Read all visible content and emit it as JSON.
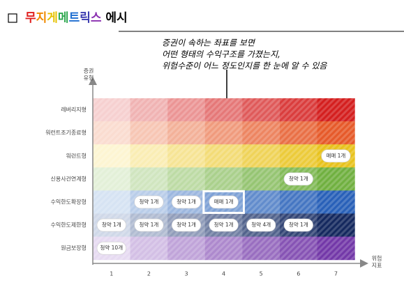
{
  "title": "무지게메트릭스 에시",
  "annotation": [
    "증권이 속하는 좌표를 보면",
    "어떤 형태의 수익구조를 가졌는지,",
    "위험수준이 어느 정도인지를 한 눈에 알 수 있음"
  ],
  "y_axis_label": [
    "증권",
    "유형"
  ],
  "x_axis_label": [
    "위험",
    "지표"
  ],
  "columns": [
    "1",
    "2",
    "3",
    "4",
    "5",
    "6",
    "7"
  ],
  "rows": [
    {
      "label": "레버리지형",
      "cells": [
        null,
        null,
        null,
        null,
        null,
        null,
        null
      ]
    },
    {
      "label": "워런트조기종료형",
      "cells": [
        null,
        null,
        null,
        null,
        null,
        null,
        null
      ]
    },
    {
      "label": "워런트형",
      "cells": [
        null,
        null,
        null,
        null,
        null,
        null,
        "매매 1개"
      ]
    },
    {
      "label": "신용사건연계형",
      "cells": [
        null,
        null,
        null,
        null,
        null,
        "청약 1개",
        null
      ]
    },
    {
      "label": "수익한도확장형",
      "cells": [
        null,
        "청약 1개",
        "청약 1개",
        "매매 1개",
        null,
        null,
        null
      ]
    },
    {
      "label": "수익한도제한형",
      "cells": [
        "청약 1개",
        "청약 1개",
        "청약 1개",
        "청약 1개",
        "청약 4개",
        "청약 1개",
        null
      ]
    },
    {
      "label": "원금보장형",
      "cells": [
        "청약 10개",
        null,
        null,
        null,
        null,
        null,
        null
      ]
    }
  ]
}
